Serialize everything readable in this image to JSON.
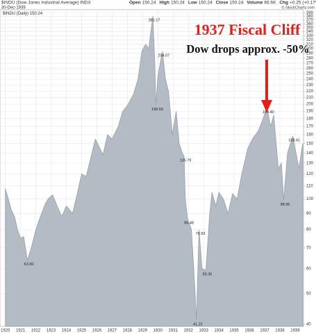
{
  "chart_data": {
    "type": "area",
    "title": "$INDU (Dow Jones Industrial Average) INDX",
    "date": "30-Dec-1939",
    "quote": [
      {
        "label": "Open",
        "text": "150.24"
      },
      {
        "label": "High",
        "text": "150.24"
      },
      {
        "label": "Low",
        "text": "150.24"
      },
      {
        "label": "Close",
        "text": "150.24"
      },
      {
        "label": "Volume",
        "text": "66.6K"
      },
      {
        "label": "Chg",
        "text": "+0.25 (+0.17%)"
      }
    ],
    "credit": "© StockCharts.com",
    "legend_value": 150.24,
    "annotations": [
      "1937 Fiscal Cliff",
      "Dow drops approx. -50%"
    ],
    "yscale": "log",
    "grid": true,
    "xlim": [
      1919.65,
      1939.55
    ],
    "ylim": [
      39.4,
      399
    ],
    "xticks": [
      1920,
      1921,
      1922,
      1923,
      1924,
      1925,
      1926,
      1927,
      1928,
      1929,
      1930,
      1931,
      1932,
      1933,
      1934,
      1935,
      1936,
      1937,
      1938,
      1939
    ],
    "yticks": [
      40,
      50,
      60,
      70,
      80,
      90,
      100,
      110,
      120,
      130,
      140,
      150,
      160,
      170,
      180,
      190,
      200,
      210,
      220,
      230,
      240,
      250,
      260,
      270,
      280,
      290,
      300,
      310,
      320,
      330,
      340,
      350,
      360,
      370,
      380,
      390
    ],
    "series": [
      {
        "name": "$INDU (Daily)",
        "color": "#b3bbc5",
        "x": [
          1920.0,
          1920.2,
          1920.4,
          1920.6,
          1920.8,
          1921.0,
          1921.2,
          1921.45,
          1921.7,
          1922.0,
          1922.3,
          1922.6,
          1922.8,
          1923.1,
          1923.4,
          1923.7,
          1924.0,
          1924.4,
          1924.7,
          1925.0,
          1925.3,
          1925.6,
          1925.9,
          1926.2,
          1926.4,
          1926.7,
          1927.0,
          1927.4,
          1927.7,
          1928.0,
          1928.4,
          1928.7,
          1928.95,
          1929.2,
          1929.4,
          1929.67,
          1929.8,
          1929.87,
          1930.0,
          1930.3,
          1930.5,
          1930.7,
          1930.95,
          1931.2,
          1931.4,
          1931.6,
          1931.72,
          1931.8,
          1931.95,
          1932.2,
          1932.4,
          1932.53,
          1932.7,
          1932.9,
          1933.15,
          1933.4,
          1933.55,
          1933.8,
          1934.0,
          1934.3,
          1934.6,
          1934.9,
          1935.2,
          1935.5,
          1935.9,
          1936.2,
          1936.6,
          1936.9,
          1937.15,
          1937.4,
          1937.6,
          1937.9,
          1938.1,
          1938.25,
          1938.5,
          1938.85,
          1939.0,
          1939.25,
          1939.5
        ],
        "values": [
          108,
          100,
          92,
          88,
          80,
          75,
          76,
          63.9,
          70,
          80,
          88,
          96,
          100,
          103,
          95,
          88,
          95,
          90,
          103,
          120,
          118,
          135,
          155,
          145,
          138,
          160,
          155,
          170,
          190,
          198,
          215,
          240,
          295,
          310,
          300,
          381.17,
          270,
          198.69,
          245,
          294.07,
          240,
          220,
          160,
          190,
          150,
          140,
          136.79,
          100,
          86.48,
          80,
          55,
          41.22,
          79.93,
          60,
          59.36,
          90,
          105,
          95,
          105,
          100,
          90,
          104,
          100,
          120,
          145,
          155,
          165,
          180,
          194.4,
          170,
          185,
          125,
          130,
          98.95,
          140,
          158.41,
          145,
          125,
          150.24
        ]
      }
    ],
    "point_labels": [
      {
        "x": 1921.45,
        "y": 63.9,
        "label": "63.90"
      },
      {
        "x": 1929.67,
        "y": 381.17,
        "label": "381.17"
      },
      {
        "x": 1930.3,
        "y": 294.07,
        "label": "294.07"
      },
      {
        "x": 1929.87,
        "y": 198.69,
        "label": "198.69"
      },
      {
        "x": 1931.72,
        "y": 136.79,
        "label": "136.79"
      },
      {
        "x": 1931.95,
        "y": 86.48,
        "label": "86.48"
      },
      {
        "x": 1932.7,
        "y": 79.93,
        "label": "79.93"
      },
      {
        "x": 1933.15,
        "y": 59.36,
        "label": "59.36"
      },
      {
        "x": 1932.53,
        "y": 41.22,
        "label": "41.22"
      },
      {
        "x": 1937.15,
        "y": 194.4,
        "label": "194.40"
      },
      {
        "x": 1938.25,
        "y": 98.95,
        "label": "98.95"
      },
      {
        "x": 1938.85,
        "y": 158.41,
        "label": "158.41"
      }
    ]
  }
}
